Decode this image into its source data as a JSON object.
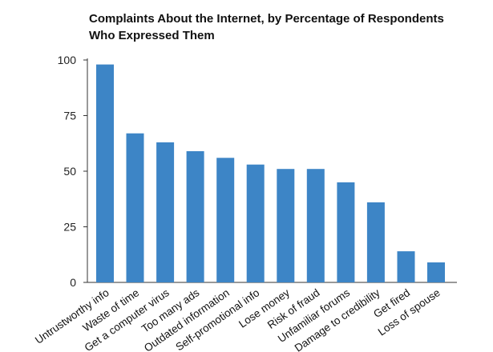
{
  "chart_data": {
    "type": "bar",
    "title": "Complaints About the Internet, by Percentage of Respondents Who Expressed Them",
    "title_lines": [
      "Complaints About the Internet, by Percentage of Respondents",
      "Who Expressed Them"
    ],
    "xlabel": "",
    "ylabel": "",
    "ylim": [
      0,
      100
    ],
    "yticks": [
      0,
      25,
      50,
      75,
      100
    ],
    "grid": false,
    "legend": "none",
    "categories": [
      "Untrustworthy info",
      "Waste of time",
      "Get a computer virus",
      "Too many ads",
      "Outdated information",
      "Self-promotional info",
      "Lose money",
      "Risk of fraud",
      "Unfamiliar forums",
      "Damage to credibility",
      "Get fired",
      "Loss of spouse"
    ],
    "values": [
      98,
      67,
      63,
      59,
      56,
      53,
      51,
      51,
      45,
      36,
      14,
      9
    ],
    "colors": {
      "bar": "#3d85c6",
      "axis": "#333333",
      "text": "#111111"
    }
  }
}
